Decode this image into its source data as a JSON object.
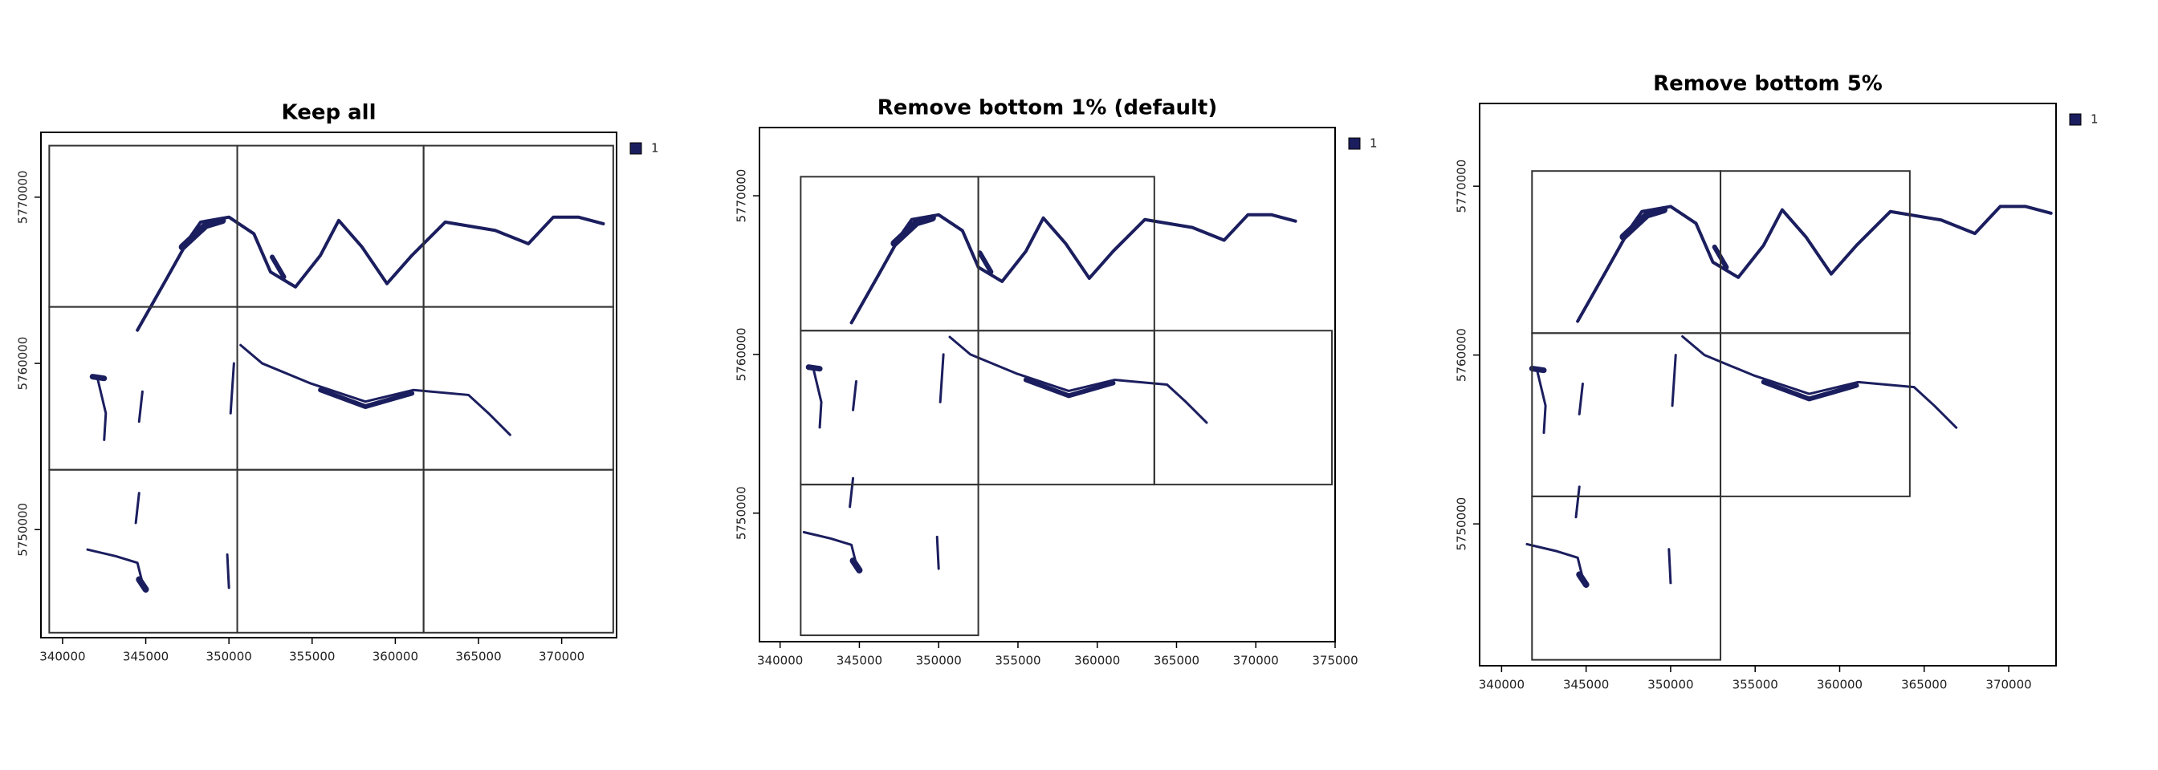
{
  "chart_data": [
    {
      "type": "map",
      "title": "Keep all",
      "xlim": [
        338700,
        373300
      ],
      "ylim": [
        5743500,
        5773900
      ],
      "xticks": [
        340000,
        345000,
        350000,
        355000,
        360000,
        365000,
        370000
      ],
      "yticks": [
        5750000,
        5760000,
        5770000
      ],
      "series": [
        {
          "name": "1",
          "color": "#1b1e5e"
        }
      ],
      "tiles": [
        [
          339200,
          350500,
          5763400,
          5773100
        ],
        [
          350500,
          361700,
          5763400,
          5773100
        ],
        [
          361700,
          373100,
          5763400,
          5773100
        ],
        [
          339200,
          350500,
          5753600,
          5763400
        ],
        [
          350500,
          361700,
          5753600,
          5763400
        ],
        [
          361700,
          373100,
          5753600,
          5763400
        ],
        [
          339200,
          350500,
          5743800,
          5753600
        ],
        [
          350500,
          361700,
          5743800,
          5753600
        ],
        [
          361700,
          373100,
          5743800,
          5753600
        ]
      ]
    },
    {
      "type": "map",
      "title": "Remove bottom 1% (default)",
      "xlim": [
        338700,
        375000
      ],
      "ylim": [
        5741900,
        5774300
      ],
      "xticks": [
        340000,
        345000,
        350000,
        355000,
        360000,
        365000,
        370000,
        375000
      ],
      "yticks": [
        5750000,
        5760000,
        5770000
      ],
      "series": [
        {
          "name": "1",
          "color": "#1b1e5e"
        }
      ],
      "tiles": [
        [
          341300,
          352500,
          5761500,
          5771200
        ],
        [
          352500,
          363600,
          5761500,
          5771200
        ],
        [
          341300,
          352500,
          5751800,
          5761500
        ],
        [
          352500,
          363600,
          5751800,
          5761500
        ],
        [
          363600,
          374800,
          5751800,
          5761500
        ],
        [
          341300,
          352500,
          5742300,
          5751800
        ]
      ]
    },
    {
      "type": "map",
      "title": "Remove bottom 5%",
      "xlim": [
        338700,
        372800
      ],
      "ylim": [
        5741600,
        5774900
      ],
      "xticks": [
        340000,
        345000,
        350000,
        355000,
        360000,
        365000,
        370000
      ],
      "yticks": [
        5750000,
        5760000,
        5770000
      ],
      "series": [
        {
          "name": "1",
          "color": "#1b1e5e"
        }
      ],
      "tiles": [
        [
          341800,
          352950,
          5761300,
          5770900
        ],
        [
          352950,
          364150,
          5761300,
          5770900
        ],
        [
          341800,
          352950,
          5751630,
          5761300
        ],
        [
          352950,
          364150,
          5751630,
          5761300
        ],
        [
          341800,
          352950,
          5741950,
          5751630
        ]
      ]
    }
  ]
}
